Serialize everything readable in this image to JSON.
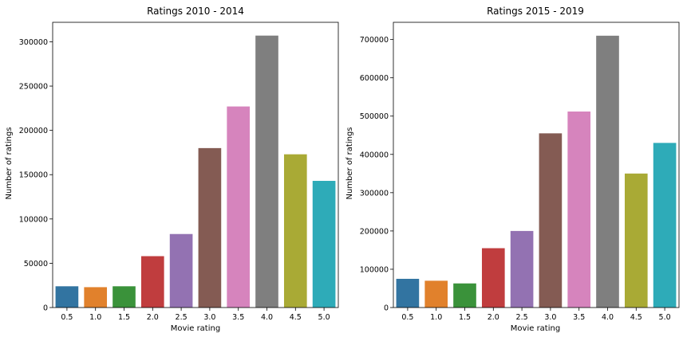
{
  "chart_data": [
    {
      "type": "bar",
      "title": "Ratings 2010 - 2014",
      "xlabel": "Movie rating",
      "ylabel": "Number of ratings",
      "categories": [
        "0.5",
        "1.0",
        "1.5",
        "2.0",
        "2.5",
        "3.0",
        "3.5",
        "4.0",
        "4.5",
        "5.0"
      ],
      "values": [
        24000,
        23000,
        24000,
        58000,
        83000,
        180000,
        227000,
        307000,
        173000,
        143000
      ],
      "ylim": [
        0,
        322000
      ],
      "yticks": [
        0,
        50000,
        100000,
        150000,
        200000,
        250000,
        300000
      ],
      "grid": false
    },
    {
      "type": "bar",
      "title": "Ratings 2015 - 2019",
      "xlabel": "Movie rating",
      "ylabel": "Number of ratings",
      "categories": [
        "0.5",
        "1.0",
        "1.5",
        "2.0",
        "2.5",
        "3.0",
        "3.5",
        "4.0",
        "4.5",
        "5.0"
      ],
      "values": [
        75000,
        70000,
        63000,
        155000,
        200000,
        455000,
        512000,
        710000,
        350000,
        430000
      ],
      "ylim": [
        0,
        745000
      ],
      "yticks": [
        0,
        100000,
        200000,
        300000,
        400000,
        500000,
        600000,
        700000
      ],
      "grid": false
    }
  ],
  "colors": [
    "#3274a1",
    "#e1812c",
    "#3a923a",
    "#c03d3e",
    "#9372b2",
    "#845b53",
    "#d684bd",
    "#7f7f7f",
    "#a9aa35",
    "#2eabb8"
  ]
}
